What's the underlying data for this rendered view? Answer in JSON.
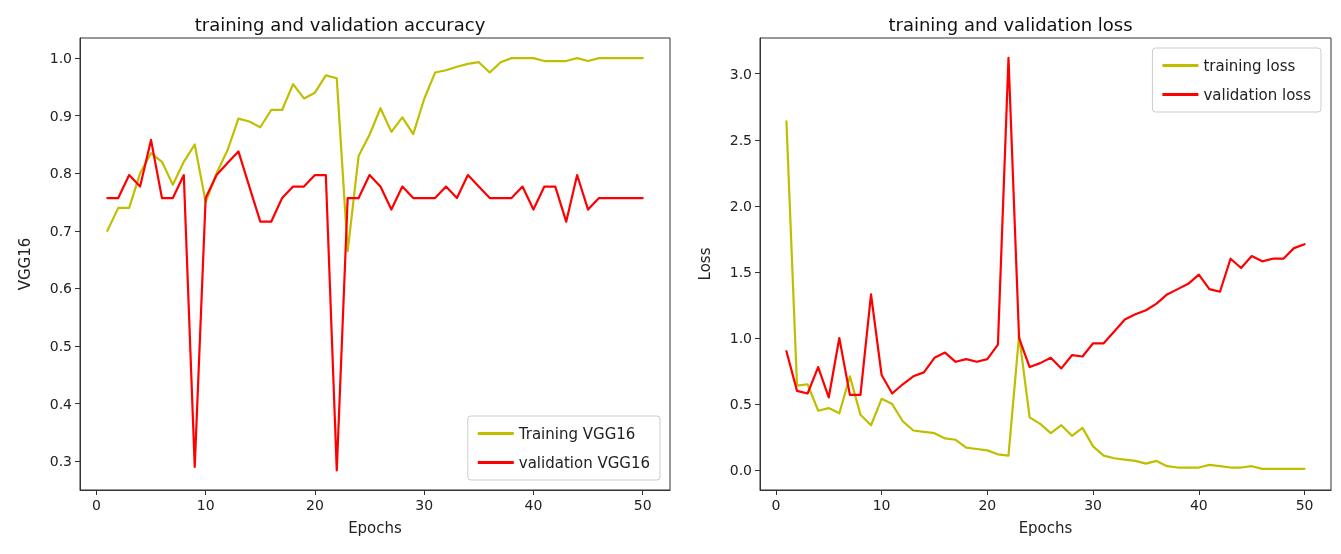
{
  "chart_data": [
    {
      "type": "line",
      "title": "training and validation accuracy",
      "xlabel": "Epochs",
      "ylabel": "VGG16",
      "legend": "bottom right",
      "grid": false,
      "marker": "none",
      "line_style": "solid",
      "x": [
        1,
        2,
        3,
        4,
        5,
        6,
        7,
        8,
        9,
        10,
        11,
        12,
        13,
        14,
        15,
        16,
        17,
        18,
        19,
        20,
        21,
        22,
        23,
        24,
        25,
        26,
        27,
        28,
        29,
        30,
        31,
        32,
        33,
        34,
        35,
        36,
        37,
        38,
        39,
        40,
        41,
        42,
        43,
        44,
        45,
        46,
        47,
        48,
        49,
        50
      ],
      "xlim": [
        -1.5,
        52.5
      ],
      "xticks": [
        0,
        10,
        20,
        30,
        40,
        50
      ],
      "ylim": [
        0.25,
        1.035
      ],
      "yticks": [
        0.3,
        0.4,
        0.5,
        0.6,
        0.7,
        0.8,
        0.9,
        {
          "value": 1,
          "label": "1.0"
        }
      ],
      "series": [
        {
          "name": "Training VGG16",
          "color": "#bfbf00",
          "values": [
            0.7,
            0.74,
            0.74,
            0.8,
            0.835,
            0.82,
            0.78,
            0.82,
            0.85,
            0.75,
            0.8,
            0.84,
            0.895,
            0.89,
            0.88,
            0.91,
            0.91,
            0.955,
            0.93,
            0.94,
            0.97,
            0.965,
            0.665,
            0.83,
            0.867,
            0.913,
            0.872,
            0.897,
            0.868,
            0.929,
            0.975,
            0.979,
            0.985,
            0.99,
            0.993,
            0.975,
            0.993,
            1.0,
            1.0,
            1.0,
            0.995,
            0.995,
            0.995,
            1.0,
            0.995,
            1.0,
            1.0,
            1.0,
            1.0,
            1.0
          ]
        },
        {
          "name": "validation VGG16",
          "color": "#ff0000",
          "values": [
            0.757,
            0.757,
            0.797,
            0.777,
            0.858,
            0.757,
            0.757,
            0.797,
            0.29,
            0.757,
            0.797,
            0.818,
            0.838,
            0.777,
            0.716,
            0.716,
            0.757,
            0.777,
            0.777,
            0.797,
            0.797,
            0.284,
            0.757,
            0.757,
            0.797,
            0.777,
            0.737,
            0.777,
            0.757,
            0.757,
            0.757,
            0.777,
            0.757,
            0.797,
            0.777,
            0.757,
            0.757,
            0.757,
            0.777,
            0.737,
            0.777,
            0.777,
            0.716,
            0.797,
            0.737,
            0.757,
            0.757,
            0.757,
            0.757,
            0.757
          ]
        }
      ]
    },
    {
      "type": "line",
      "title": "training and validation loss",
      "xlabel": "Epochs",
      "ylabel": "Loss",
      "legend": "top right",
      "grid": false,
      "marker": "none",
      "line_style": "solid",
      "x": [
        1,
        2,
        3,
        4,
        5,
        6,
        7,
        8,
        9,
        10,
        11,
        12,
        13,
        14,
        15,
        16,
        17,
        18,
        19,
        20,
        21,
        22,
        23,
        24,
        25,
        26,
        27,
        28,
        29,
        30,
        31,
        32,
        33,
        34,
        35,
        36,
        37,
        38,
        39,
        40,
        41,
        42,
        43,
        44,
        45,
        46,
        47,
        48,
        49,
        50
      ],
      "xlim": [
        -1.5,
        52.5
      ],
      "xticks": [
        0,
        10,
        20,
        30,
        40,
        50
      ],
      "ylim": [
        -0.15,
        3.27
      ],
      "yticks": [
        {
          "value": 0,
          "label": "0.0"
        },
        0.5,
        {
          "value": 1,
          "label": "1.0"
        },
        1.5,
        {
          "value": 2,
          "label": "2.0"
        },
        2.5,
        {
          "value": 3,
          "label": "3.0"
        }
      ],
      "series": [
        {
          "name": "training loss",
          "color": "#bfbf00",
          "values": [
            2.64,
            0.64,
            0.65,
            0.45,
            0.47,
            0.43,
            0.71,
            0.42,
            0.34,
            0.54,
            0.5,
            0.37,
            0.3,
            0.29,
            0.28,
            0.24,
            0.23,
            0.17,
            0.16,
            0.15,
            0.12,
            0.11,
            1.02,
            0.4,
            0.35,
            0.28,
            0.34,
            0.26,
            0.32,
            0.18,
            0.11,
            0.09,
            0.08,
            0.07,
            0.05,
            0.07,
            0.03,
            0.02,
            0.02,
            0.02,
            0.04,
            0.03,
            0.02,
            0.02,
            0.03,
            0.01,
            0.01,
            0.01,
            0.01,
            0.01
          ]
        },
        {
          "name": "validation loss",
          "color": "#ff0000",
          "values": [
            0.9,
            0.6,
            0.58,
            0.78,
            0.55,
            1.0,
            0.57,
            0.57,
            1.33,
            0.72,
            0.58,
            0.65,
            0.71,
            0.74,
            0.85,
            0.89,
            0.82,
            0.84,
            0.82,
            0.84,
            0.95,
            3.12,
            1.0,
            0.78,
            0.81,
            0.85,
            0.77,
            0.87,
            0.86,
            0.96,
            0.96,
            1.05,
            1.14,
            1.18,
            1.21,
            1.26,
            1.33,
            1.37,
            1.41,
            1.48,
            1.37,
            1.35,
            1.6,
            1.53,
            1.62,
            1.58,
            1.6,
            1.6,
            1.68,
            1.71
          ]
        }
      ]
    }
  ]
}
